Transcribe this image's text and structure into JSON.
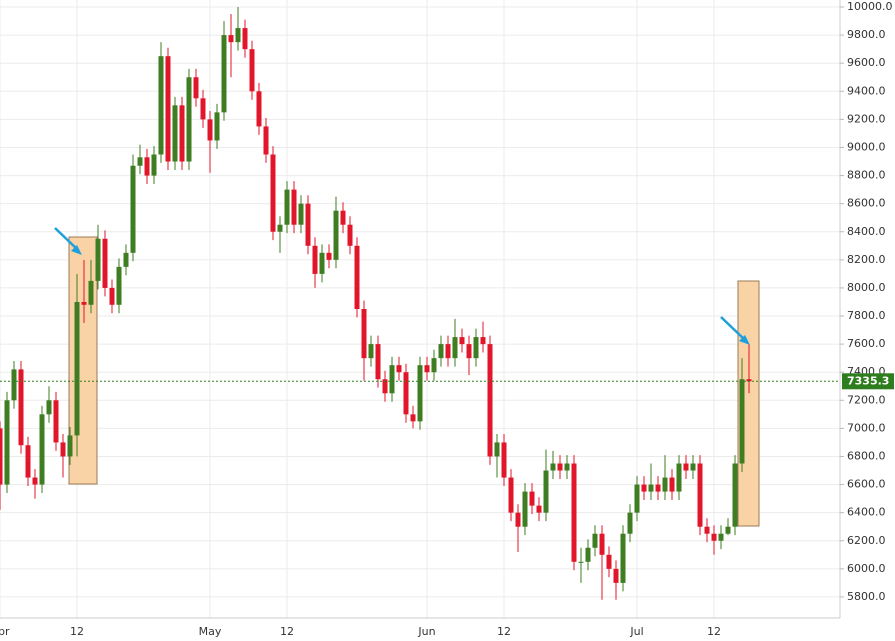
{
  "chart_data": {
    "type": "candlestick",
    "categories": [
      "Apr",
      null,
      null,
      null,
      null,
      null,
      null,
      null,
      null,
      null,
      null,
      "12",
      null,
      null,
      null,
      null,
      null,
      null,
      null,
      null,
      null,
      null,
      null,
      null,
      null,
      null,
      null,
      null,
      null,
      null,
      "May",
      null,
      null,
      null,
      null,
      null,
      null,
      null,
      null,
      null,
      null,
      "12",
      null,
      null,
      null,
      null,
      null,
      null,
      null,
      null,
      null,
      null,
      null,
      null,
      null,
      null,
      null,
      null,
      null,
      null,
      null,
      "Jun",
      null,
      null,
      null,
      null,
      null,
      null,
      null,
      null,
      null,
      null,
      "12",
      null,
      null,
      null,
      null,
      null,
      null,
      null,
      null,
      null,
      null,
      null,
      null,
      null,
      null,
      null,
      null,
      null,
      null,
      "Jul",
      null,
      null,
      null,
      null,
      null,
      null,
      null,
      null,
      null,
      null,
      "12",
      null,
      null,
      null,
      null,
      null
    ],
    "open": [
      7000,
      6600,
      7200,
      7420,
      6880,
      6650,
      6600,
      7100,
      7200,
      6900,
      6800,
      6950,
      7900,
      7880,
      8050,
      8350,
      8000,
      7880,
      8150,
      8250,
      8870,
      8930,
      8800,
      8950,
      9650,
      8900,
      9300,
      8900,
      9500,
      9350,
      9200,
      9050,
      9250,
      9800,
      9750,
      9850,
      9700,
      9400,
      9150,
      8950,
      8400,
      8450,
      8700,
      8450,
      8600,
      8300,
      8100,
      8250,
      8200,
      8550,
      8450,
      8300,
      7850,
      7500,
      7600,
      7350,
      7250,
      7450,
      7400,
      7100,
      7050,
      7450,
      7400,
      7500,
      7600,
      7500,
      7650,
      7600,
      7500,
      7650,
      7600,
      6800,
      6900,
      6650,
      6400,
      6300,
      6550,
      6450,
      6400,
      6700,
      6750,
      6700,
      6750,
      6050,
      6050,
      6150,
      6250,
      6100,
      6000,
      5900,
      6250,
      6400,
      6600,
      6550,
      6600,
      6550,
      6650,
      6550,
      6750,
      6700,
      6750,
      6300,
      6250,
      6200,
      6250,
      6300,
      6750,
      7350
    ],
    "high": [
      7050,
      7260,
      7480,
      7480,
      6940,
      6710,
      7160,
      7300,
      7260,
      6960,
      7010,
      8100,
      8200,
      8200,
      8450,
      8410,
      8060,
      8210,
      8310,
      8950,
      9020,
      8990,
      9010,
      9750,
      9710,
      9360,
      9360,
      9560,
      9560,
      9410,
      9260,
      9310,
      9900,
      9950,
      10000,
      9910,
      9760,
      9460,
      9210,
      9010,
      8510,
      8760,
      8760,
      8660,
      8660,
      8360,
      8310,
      8310,
      8650,
      8610,
      8510,
      8360,
      7910,
      7660,
      7660,
      7410,
      7510,
      7510,
      7460,
      7160,
      7510,
      7510,
      7560,
      7660,
      7660,
      7780,
      7710,
      7660,
      7710,
      7760,
      7660,
      6960,
      6960,
      6710,
      6460,
      6610,
      6610,
      6510,
      6850,
      6840,
      6810,
      6810,
      6810,
      6150,
      6210,
      6310,
      6310,
      6160,
      6060,
      6310,
      6460,
      6660,
      6660,
      6750,
      6660,
      6810,
      6710,
      6810,
      6810,
      6810,
      6810,
      6360,
      6310,
      6310,
      6360,
      6810,
      7500,
      7600
    ],
    "low": [
      6420,
      6540,
      7140,
      6820,
      6590,
      6500,
      6540,
      7040,
      6840,
      6650,
      6740,
      6800,
      7750,
      7820,
      7990,
      7940,
      7820,
      7820,
      8090,
      8190,
      8810,
      8740,
      8740,
      8890,
      8840,
      8840,
      8840,
      8840,
      9290,
      9140,
      8820,
      8990,
      9190,
      9500,
      9690,
      9640,
      9340,
      9090,
      8890,
      8340,
      8250,
      8390,
      8390,
      8390,
      8240,
      8000,
      8040,
      8140,
      8140,
      8390,
      8240,
      7790,
      7340,
      7440,
      7290,
      7190,
      7190,
      7340,
      7040,
      7000,
      6990,
      7340,
      7340,
      7440,
      7440,
      7440,
      7540,
      7380,
      7440,
      7540,
      6740,
      6650,
      6590,
      6340,
      6120,
      6240,
      6390,
      6340,
      6340,
      6640,
      6640,
      6640,
      5990,
      5900,
      5990,
      6090,
      5780,
      5940,
      5780,
      5840,
      6190,
      6340,
      6490,
      6490,
      6490,
      6490,
      6490,
      6490,
      6640,
      6640,
      6240,
      6190,
      6100,
      6140,
      6240,
      6240,
      6690,
      7250
    ],
    "close": [
      6600,
      7200,
      7420,
      6880,
      6650,
      6600,
      7100,
      7200,
      6900,
      6800,
      6950,
      7900,
      7880,
      8050,
      8350,
      8000,
      7880,
      8150,
      8250,
      8870,
      8930,
      8800,
      8950,
      9650,
      8900,
      9300,
      8900,
      9500,
      9350,
      9200,
      9050,
      9250,
      9800,
      9750,
      9850,
      9700,
      9400,
      9150,
      8950,
      8400,
      8450,
      8700,
      8450,
      8600,
      8300,
      8100,
      8250,
      8200,
      8550,
      8450,
      8300,
      7850,
      7500,
      7600,
      7350,
      7250,
      7450,
      7400,
      7100,
      7050,
      7450,
      7400,
      7500,
      7600,
      7500,
      7650,
      7600,
      7500,
      7650,
      7600,
      6800,
      6900,
      6650,
      6400,
      6300,
      6550,
      6450,
      6400,
      6700,
      6750,
      6700,
      6750,
      6050,
      6050,
      6150,
      6250,
      6100,
      6000,
      5900,
      6250,
      6400,
      6600,
      6550,
      6600,
      6550,
      6650,
      6550,
      6750,
      6700,
      6750,
      6300,
      6250,
      6200,
      6250,
      6300,
      6750,
      7350,
      7335.3
    ],
    "up_color": "#3e7d22",
    "down_color": "#e2162b",
    "last_price": 7335.3,
    "last_price_color": "#2e7d1e",
    "ylim": [
      5650,
      10050
    ],
    "yticks": [
      {
        "value": 5800,
        "label": "5800.0"
      },
      {
        "value": 6000,
        "label": "6000.0"
      },
      {
        "value": 6200,
        "label": "6200.0"
      },
      {
        "value": 6400,
        "label": "6400.0"
      },
      {
        "value": 6600,
        "label": "6600.0"
      },
      {
        "value": 6800,
        "label": "6800.0"
      },
      {
        "value": 7000,
        "label": "7000.0"
      },
      {
        "value": 7200,
        "label": "7200.0"
      },
      {
        "value": 7400,
        "label": "7400.0"
      },
      {
        "value": 7600,
        "label": "7600.0"
      },
      {
        "value": 7800,
        "label": "7800.0"
      },
      {
        "value": 8000,
        "label": "8000.0"
      },
      {
        "value": 8200,
        "label": "8200.0"
      },
      {
        "value": 8400,
        "label": "8400.0"
      },
      {
        "value": 8600,
        "label": "8600.0"
      },
      {
        "value": 8800,
        "label": "8800.0"
      },
      {
        "value": 9000,
        "label": "9000.0"
      },
      {
        "value": 9200,
        "label": "9200.0"
      },
      {
        "value": 9400,
        "label": "9400.0"
      },
      {
        "value": 9600,
        "label": "9600.0"
      },
      {
        "value": 9800,
        "label": "9800.0"
      },
      {
        "value": 10000,
        "label": "10000.0"
      }
    ],
    "grid": true
  }
}
